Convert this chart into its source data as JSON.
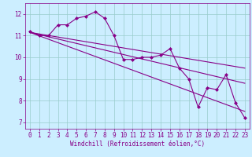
{
  "bg_color": "#cceeff",
  "line_color": "#880088",
  "grid_color": "#99cccc",
  "ylabel_vals": [
    7,
    8,
    9,
    10,
    11,
    12
  ],
  "xlabel_vals": [
    0,
    1,
    2,
    3,
    4,
    5,
    6,
    7,
    8,
    9,
    10,
    11,
    12,
    13,
    14,
    15,
    16,
    17,
    18,
    19,
    20,
    21,
    22,
    23
  ],
  "xlabel": "Windchill (Refroidissement éolien,°C)",
  "ylim": [
    6.7,
    12.5
  ],
  "xlim": [
    -0.5,
    23.5
  ],
  "series1_x": [
    0,
    1,
    2,
    3,
    4,
    5,
    6,
    7,
    8,
    9,
    10,
    11,
    12,
    13,
    14,
    15,
    16,
    17,
    18,
    19,
    20,
    21,
    22,
    23
  ],
  "series1_y": [
    11.2,
    11.0,
    11.0,
    11.5,
    11.5,
    11.8,
    11.9,
    12.1,
    11.8,
    11.0,
    9.9,
    9.9,
    10.0,
    10.0,
    10.1,
    10.4,
    9.5,
    9.0,
    7.7,
    8.6,
    8.5,
    9.2,
    7.9,
    7.2
  ],
  "trend1_x": [
    0,
    23
  ],
  "trend1_y": [
    11.15,
    9.5
  ],
  "trend2_x": [
    0,
    23
  ],
  "trend2_y": [
    11.15,
    8.8
  ],
  "trend3_x": [
    0,
    23
  ],
  "trend3_y": [
    11.15,
    7.5
  ],
  "marker": "D",
  "markersize": 2.0,
  "linewidth": 0.8,
  "trend_linewidth": 0.8,
  "tick_fontsize": 5.5,
  "xlabel_fontsize": 5.5
}
